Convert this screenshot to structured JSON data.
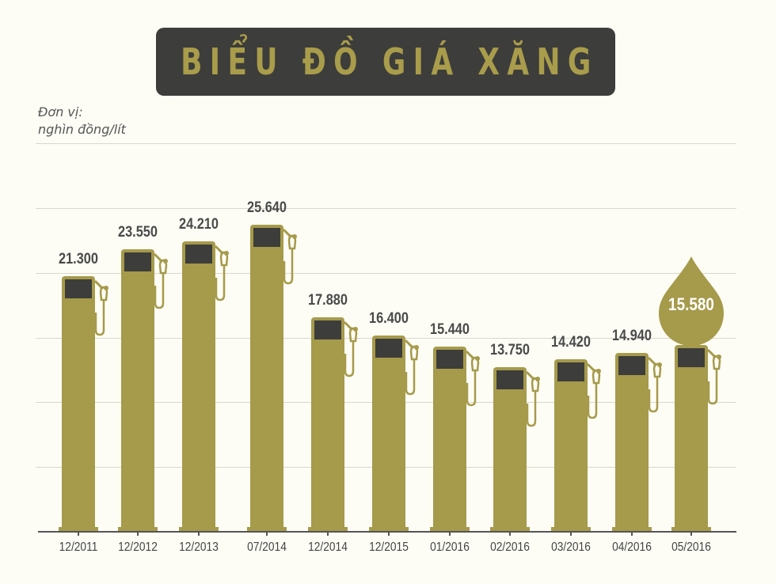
{
  "title": "BIỂU ĐỒ GIÁ XĂNG",
  "unit": {
    "line1": "Đơn vị:",
    "line2": "nghìn đồng/lít"
  },
  "colors": {
    "background": "#fdfdf5",
    "bar": "#a69a4b",
    "screen": "#3d3d3b",
    "title_bg": "#3d3d3b",
    "title_text": "#a99c4b",
    "grid": "#d9d8cc",
    "axis": "#555555"
  },
  "icons": {
    "bar": "fuel-pump-icon",
    "highlight": "oil-drop-icon"
  },
  "highlight": {
    "label": "15.580",
    "category": "05/2016"
  },
  "chart_data": {
    "type": "bar",
    "title": "BIỂU ĐỒ GIÁ XĂNG",
    "ylabel": "Đơn vị: nghìn đồng/lít",
    "xlabel": "",
    "categories": [
      "12/2011",
      "12/2012",
      "12/2013",
      "07/2014",
      "12/2014",
      "12/2015",
      "01/2016",
      "02/2016",
      "03/2016",
      "04/2016",
      "05/2016"
    ],
    "values": [
      21.3,
      23.55,
      24.21,
      25.64,
      17.88,
      16.4,
      15.44,
      13.75,
      14.42,
      14.94,
      15.58
    ],
    "value_labels": [
      "21.300",
      "23.550",
      "24.210",
      "25.640",
      "17.880",
      "16.400",
      "15.440",
      "13.750",
      "14.420",
      "14.940",
      "15.580"
    ],
    "ylim": [
      0,
      30
    ],
    "grid": true,
    "legend": "none",
    "annotations": [
      "15.580 shown inside fuel-drop marker for 05/2016"
    ]
  }
}
